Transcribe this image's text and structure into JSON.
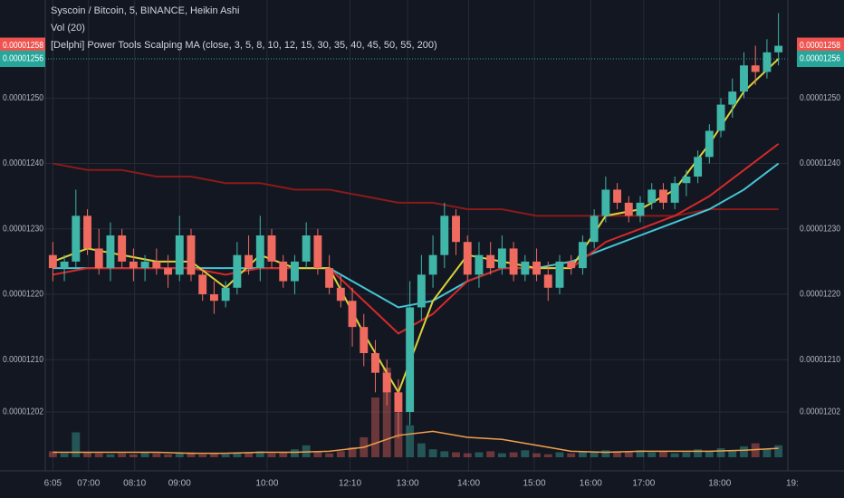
{
  "chart_data": {
    "type": "candlestick",
    "title": "Syscoin / Bitcoin, 5, BINANCE, Heikin Ashi",
    "volume_label": "Vol (20)",
    "indicator_label": "[Delphi] Power Tools Scalping MA (close, 3, 5, 8, 10, 12, 15, 30, 35, 40, 45, 50, 55, 200)",
    "up_color": "#3fb6a8",
    "down_color": "#ef6a5f",
    "grid": true,
    "xlim": [
      -0.5,
      63.5
    ],
    "xticks": [
      {
        "value": 0,
        "label": "6:05"
      },
      {
        "value": 3.1,
        "label": "07:00"
      },
      {
        "value": 7.1,
        "label": "08:10"
      },
      {
        "value": 11,
        "label": "09:00"
      },
      {
        "value": 18.6,
        "label": "10:00"
      },
      {
        "value": 25.8,
        "label": "12:10"
      },
      {
        "value": 30.8,
        "label": "13:00"
      },
      {
        "value": 36.1,
        "label": "14:00"
      },
      {
        "value": 41.8,
        "label": "15:00"
      },
      {
        "value": 46.7,
        "label": "16:00"
      },
      {
        "value": 51.3,
        "label": "17:00"
      },
      {
        "value": 57.9,
        "label": "18:00"
      },
      {
        "value": 64.2,
        "label": "19:"
      }
    ],
    "ylim": [
      1.193e-05,
      1.265e-05
    ],
    "yticks": [
      1.202e-05,
      {
        "value": 1.21e-05,
        "label": "0.00001210"
      },
      {
        "value": 1.22e-05,
        "label": "0.00001220"
      },
      {
        "value": 1.23e-05,
        "label": "0.00001230"
      },
      {
        "value": 1.24e-05,
        "label": "0.00001240"
      },
      {
        "value": 1.25e-05,
        "label": "0.00001250"
      }
    ],
    "open": [
      1.226e-05,
      1.224e-05,
      1.225e-05,
      1.232e-05,
      1.227e-05,
      1.224e-05,
      1.229e-05,
      1.225e-05,
      1.224e-05,
      1.225e-05,
      1.224e-05,
      1.223e-05,
      1.229e-05,
      1.223e-05,
      1.22e-05,
      1.219e-05,
      1.221e-05,
      1.226e-05,
      1.224e-05,
      1.229e-05,
      1.225e-05,
      1.222e-05,
      1.225e-05,
      1.229e-05,
      1.224e-05,
      1.221e-05,
      1.219e-05,
      1.215e-05,
      1.211e-05,
      1.208e-05,
      1.205e-05,
      1.202e-05,
      1.218e-05,
      1.223e-05,
      1.226e-05,
      1.232e-05,
      1.228e-05,
      1.223e-05,
      1.226e-05,
      1.224e-05,
      1.227e-05,
      1.223e-05,
      1.225e-05,
      1.223e-05,
      1.221e-05,
      1.225e-05,
      1.224e-05,
      1.228e-05,
      1.232e-05,
      1.236e-05,
      1.234e-05,
      1.232e-05,
      1.234e-05,
      1.236e-05,
      1.234e-05,
      1.237e-05,
      1.238e-05,
      1.241e-05,
      1.245e-05,
      1.249e-05,
      1.251e-05,
      1.255e-05,
      1.254e-05,
      1.257e-05
    ],
    "high": [
      1.228e-05,
      1.226e-05,
      1.236e-05,
      1.233e-05,
      1.23e-05,
      1.231e-05,
      1.23e-05,
      1.227e-05,
      1.226e-05,
      1.227e-05,
      1.226e-05,
      1.232e-05,
      1.23e-05,
      1.224e-05,
      1.222e-05,
      1.222e-05,
      1.228e-05,
      1.229e-05,
      1.232e-05,
      1.23e-05,
      1.226e-05,
      1.226e-05,
      1.231e-05,
      1.23e-05,
      1.226e-05,
      1.223e-05,
      1.221e-05,
      1.217e-05,
      1.213e-05,
      1.21e-05,
      1.207e-05,
      1.222e-05,
      1.226e-05,
      1.229e-05,
      1.234e-05,
      1.233e-05,
      1.229e-05,
      1.228e-05,
      1.228e-05,
      1.229e-05,
      1.228e-05,
      1.226e-05,
      1.227e-05,
      1.225e-05,
      1.226e-05,
      1.226e-05,
      1.229e-05,
      1.233e-05,
      1.238e-05,
      1.237e-05,
      1.235e-05,
      1.235e-05,
      1.237e-05,
      1.237e-05,
      1.238e-05,
      1.239e-05,
      1.242e-05,
      1.246e-05,
      1.25e-05,
      1.253e-05,
      1.257e-05,
      1.258e-05,
      1.259e-05,
      1.263e-05
    ],
    "low": [
      1.222e-05,
      1.222e-05,
      1.224e-05,
      1.226e-05,
      1.223e-05,
      1.222e-05,
      1.224e-05,
      1.222e-05,
      1.222e-05,
      1.223e-05,
      1.221e-05,
      1.222e-05,
      1.222e-05,
      1.219e-05,
      1.217e-05,
      1.218e-05,
      1.22e-05,
      1.223e-05,
      1.222e-05,
      1.224e-05,
      1.221e-05,
      1.22e-05,
      1.224e-05,
      1.223e-05,
      1.22e-05,
      1.218e-05,
      1.212e-05,
      1.209e-05,
      1.205e-05,
      1.203e-05,
      1.198e-05,
      1.2e-05,
      1.216e-05,
      1.221e-05,
      1.224e-05,
      1.226e-05,
      1.222e-05,
      1.221e-05,
      1.223e-05,
      1.223e-05,
      1.222e-05,
      1.222e-05,
      1.222e-05,
      1.219e-05,
      1.22e-05,
      1.223e-05,
      1.223e-05,
      1.227e-05,
      1.231e-05,
      1.233e-05,
      1.231e-05,
      1.231e-05,
      1.233e-05,
      1.233e-05,
      1.233e-05,
      1.235e-05,
      1.237e-05,
      1.24e-05,
      1.244e-05,
      1.247e-05,
      1.25e-05,
      1.252e-05,
      1.253e-05,
      1.255e-05
    ],
    "close": [
      1.224e-05,
      1.225e-05,
      1.232e-05,
      1.227e-05,
      1.224e-05,
      1.229e-05,
      1.225e-05,
      1.224e-05,
      1.225e-05,
      1.224e-05,
      1.223e-05,
      1.229e-05,
      1.223e-05,
      1.22e-05,
      1.219e-05,
      1.221e-05,
      1.226e-05,
      1.224e-05,
      1.229e-05,
      1.225e-05,
      1.222e-05,
      1.225e-05,
      1.229e-05,
      1.224e-05,
      1.221e-05,
      1.219e-05,
      1.215e-05,
      1.211e-05,
      1.208e-05,
      1.205e-05,
      1.202e-05,
      1.218e-05,
      1.223e-05,
      1.226e-05,
      1.232e-05,
      1.228e-05,
      1.223e-05,
      1.226e-05,
      1.224e-05,
      1.227e-05,
      1.223e-05,
      1.225e-05,
      1.223e-05,
      1.221e-05,
      1.225e-05,
      1.224e-05,
      1.228e-05,
      1.232e-05,
      1.236e-05,
      1.234e-05,
      1.232e-05,
      1.234e-05,
      1.236e-05,
      1.234e-05,
      1.237e-05,
      1.238e-05,
      1.241e-05,
      1.245e-05,
      1.249e-05,
      1.251e-05,
      1.255e-05,
      1.254e-05,
      1.257e-05,
      1.258e-05
    ],
    "lines": [
      {
        "color": "#8b1a1a",
        "x": [
          0,
          3,
          6,
          9,
          12,
          15,
          18,
          21,
          24,
          27,
          30,
          33,
          36,
          39,
          42,
          45,
          48,
          51,
          54,
          57,
          60,
          63
        ],
        "values": [
          1.24e-05,
          1.239e-05,
          1.239e-05,
          1.238e-05,
          1.238e-05,
          1.237e-05,
          1.237e-05,
          1.236e-05,
          1.236e-05,
          1.235e-05,
          1.234e-05,
          1.234e-05,
          1.233e-05,
          1.233e-05,
          1.232e-05,
          1.232e-05,
          1.232e-05,
          1.232e-05,
          1.232e-05,
          1.233e-05,
          1.233e-05,
          1.233e-05
        ]
      },
      {
        "color": "#45c6d6",
        "x": [
          0,
          3,
          6,
          9,
          12,
          15,
          18,
          21,
          24,
          27,
          30,
          33,
          36,
          39,
          42,
          45,
          48,
          51,
          54,
          57,
          60,
          63
        ],
        "values": [
          1.224e-05,
          1.224e-05,
          1.224e-05,
          1.224e-05,
          1.224e-05,
          1.224e-05,
          1.224e-05,
          1.224e-05,
          1.224e-05,
          1.221e-05,
          1.218e-05,
          1.219e-05,
          1.222e-05,
          1.224e-05,
          1.224e-05,
          1.225e-05,
          1.227e-05,
          1.229e-05,
          1.231e-05,
          1.233e-05,
          1.236e-05,
          1.24e-05
        ]
      },
      {
        "color": "#d42a2a",
        "x": [
          0,
          3,
          6,
          9,
          12,
          15,
          18,
          21,
          24,
          27,
          30,
          33,
          36,
          39,
          42,
          45,
          48,
          51,
          54,
          57,
          60,
          63
        ],
        "values": [
          1.223e-05,
          1.224e-05,
          1.224e-05,
          1.224e-05,
          1.224e-05,
          1.223e-05,
          1.224e-05,
          1.224e-05,
          1.224e-05,
          1.219e-05,
          1.214e-05,
          1.217e-05,
          1.222e-05,
          1.224e-05,
          1.224e-05,
          1.224e-05,
          1.228e-05,
          1.23e-05,
          1.232e-05,
          1.235e-05,
          1.239e-05,
          1.243e-05
        ]
      },
      {
        "color": "#d9d23a",
        "x": [
          0,
          3,
          6,
          9,
          12,
          15,
          18,
          21,
          24,
          27,
          30,
          33,
          36,
          39,
          42,
          45,
          48,
          51,
          54,
          57,
          60,
          63
        ],
        "values": [
          1.225e-05,
          1.227e-05,
          1.226e-05,
          1.225e-05,
          1.225e-05,
          1.221e-05,
          1.226e-05,
          1.224e-05,
          1.224e-05,
          1.214e-05,
          1.205e-05,
          1.219e-05,
          1.226e-05,
          1.225e-05,
          1.224e-05,
          1.224e-05,
          1.232e-05,
          1.233e-05,
          1.236e-05,
          1.243e-05,
          1.251e-05,
          1.256e-05
        ]
      }
    ],
    "volume": [
      6,
      4,
      25,
      5,
      4,
      3,
      4,
      3,
      5,
      4,
      3,
      4,
      5,
      3,
      4,
      3,
      4,
      5,
      6,
      4,
      5,
      8,
      12,
      5,
      4,
      6,
      10,
      20,
      60,
      90,
      45,
      32,
      14,
      8,
      6,
      5,
      4,
      5,
      6,
      4,
      5,
      7,
      4,
      3,
      5,
      4,
      6,
      5,
      7,
      6,
      5,
      7,
      5,
      6,
      4,
      5,
      8,
      6,
      9,
      7,
      11,
      14,
      8,
      12
    ],
    "volume_ma": {
      "color": "#f0a04b",
      "x": [
        0,
        3,
        6,
        9,
        12,
        15,
        18,
        21,
        24,
        27,
        30,
        33,
        36,
        39,
        42,
        45,
        48,
        51,
        54,
        57,
        60,
        63
      ],
      "values": [
        5,
        5,
        5,
        5,
        4,
        4,
        5,
        5,
        6,
        10,
        22,
        26,
        20,
        18,
        12,
        6,
        5,
        6,
        6,
        6,
        7,
        9
      ]
    },
    "y2lim": [
      0,
      100
    ],
    "price_tags": [
      {
        "value": 1.258e-05,
        "color": "#ef5350"
      },
      {
        "value": 1.256e-05,
        "color": "#26a69a"
      }
    ]
  }
}
